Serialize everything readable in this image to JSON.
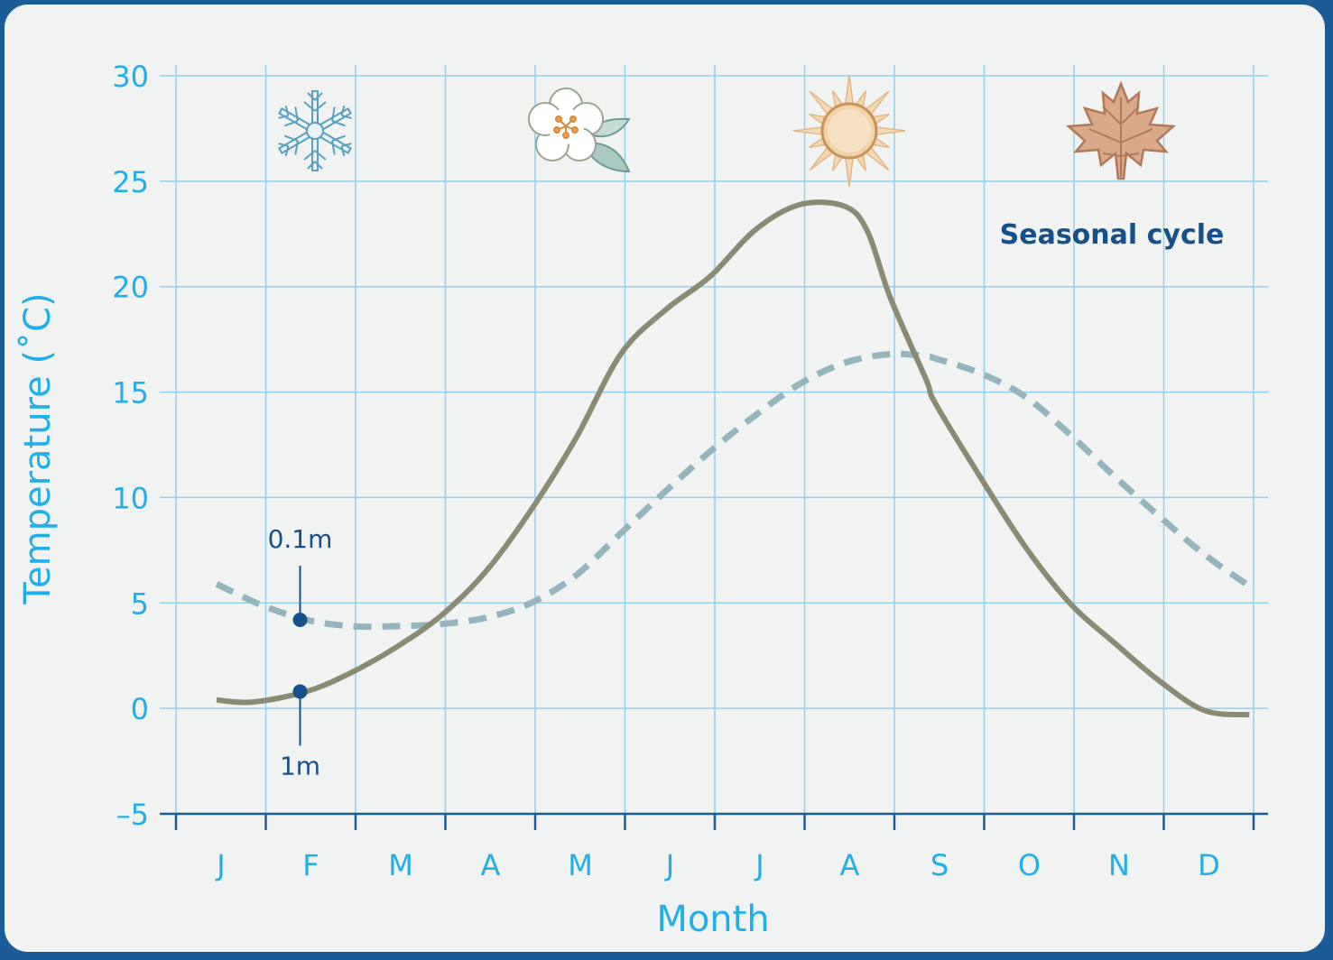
{
  "chart_data": {
    "type": "line",
    "title": "",
    "annotation": "Seasonal cycle",
    "xlabel": "Month",
    "ylabel": "Temperature (˚C)",
    "categories": [
      "J",
      "F",
      "M",
      "A",
      "M",
      "J",
      "J",
      "A",
      "S",
      "O",
      "N",
      "D"
    ],
    "yticks": [
      "30",
      "25",
      "20",
      "15",
      "10",
      "5",
      "0",
      "–5"
    ],
    "ylim": [
      -5,
      30
    ],
    "grid": true,
    "x_unit": "month",
    "series": [
      {
        "name": "1m",
        "style": "solid",
        "color": "#8a8b73",
        "x": [
          0.0,
          0.4,
          1.0,
          1.5,
          2.0,
          2.5,
          3.0,
          3.5,
          4.0,
          4.5,
          5.0,
          5.5,
          6.0,
          6.5,
          7.0,
          7.25,
          7.5,
          7.9,
          8.0,
          8.5,
          9.0,
          9.5,
          10.0,
          10.5,
          11.0,
          11.5
        ],
        "values": [
          0.4,
          0.3,
          0.8,
          1.7,
          2.9,
          4.4,
          6.5,
          9.4,
          12.8,
          16.8,
          18.9,
          20.5,
          22.7,
          23.9,
          23.8,
          22.6,
          19.5,
          15.6,
          14.5,
          11.0,
          7.7,
          5.0,
          3.1,
          1.3,
          -0.1,
          -0.3
        ]
      },
      {
        "name": "0.1m",
        "style": "dashed",
        "color": "#94b5bd",
        "x": [
          0.0,
          0.5,
          1.0,
          1.5,
          2.0,
          2.5,
          3.0,
          3.5,
          4.0,
          4.5,
          5.0,
          5.5,
          6.0,
          6.5,
          7.0,
          7.5,
          7.9,
          8.0,
          8.5,
          9.0,
          9.5,
          10.0,
          10.5,
          11.0,
          11.5
        ],
        "values": [
          5.9,
          4.9,
          4.2,
          3.9,
          3.9,
          4.0,
          4.3,
          5.0,
          6.3,
          8.3,
          10.3,
          12.2,
          13.9,
          15.4,
          16.4,
          16.8,
          16.7,
          16.6,
          15.9,
          14.8,
          13.0,
          11.0,
          9.1,
          7.3,
          5.8
        ]
      }
    ],
    "markers": [
      {
        "series": "1m",
        "label": "1m",
        "x": 1.0,
        "value": 0.8
      },
      {
        "series": "0.1m",
        "label": "0.1m",
        "x": 1.0,
        "value": 4.2
      }
    ],
    "season_icons": [
      {
        "icon": "snowflake-icon",
        "month": "J"
      },
      {
        "icon": "flower-icon",
        "month": "M"
      },
      {
        "icon": "sun-icon",
        "month": "A"
      },
      {
        "icon": "maple-leaf-icon",
        "month": "N"
      }
    ],
    "colors": {
      "axis_text": "#22aee8",
      "grid": "#8fd0f0",
      "annotation": "#16508a",
      "border": "#1a5c96",
      "background": "#f1f3f2"
    }
  }
}
